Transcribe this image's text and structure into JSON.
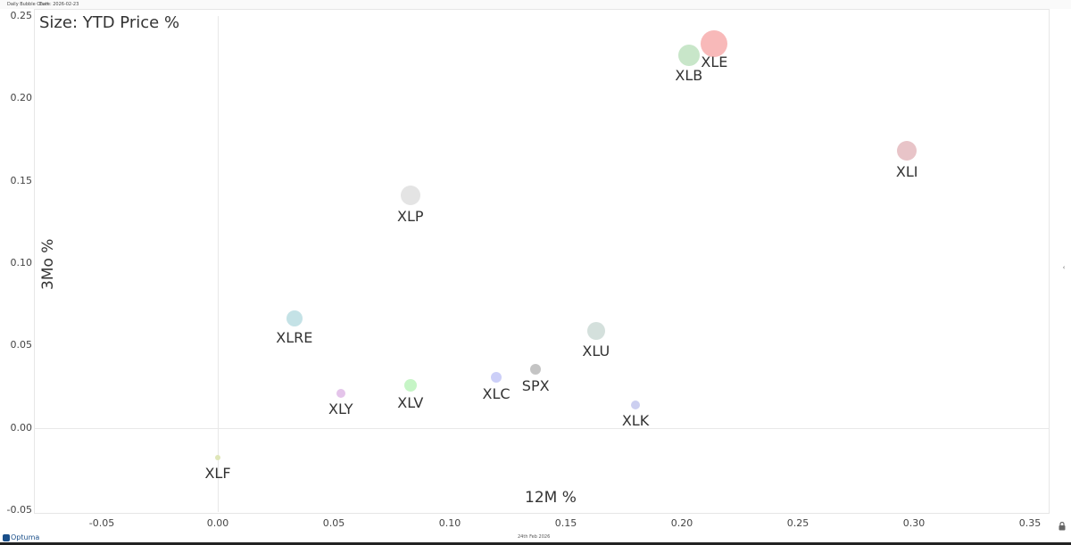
{
  "header": {
    "title": "Daily Bubble Chart",
    "date": "Date: 2026-02-23"
  },
  "footer": {
    "date": "24th Feb 2026",
    "logo": "Optuma"
  },
  "icons": {
    "lock": "lock-icon",
    "collapse": "chevron-left-icon",
    "logo": "optuma-logo-icon"
  },
  "chart_data": {
    "type": "scatter",
    "title": "Daily Bubble Chart",
    "subtitle": "Size: YTD Price %",
    "xlabel": "12M %",
    "ylabel": "3Mo %",
    "xlim": [
      -0.1,
      0.36
    ],
    "ylim": [
      -0.05,
      0.25
    ],
    "x_ticks": [
      "-0.05",
      "0.00",
      "0.05",
      "0.10",
      "0.15",
      "0.20",
      "0.25",
      "0.30",
      "0.35"
    ],
    "y_ticks": [
      "0.25",
      "0.20",
      "0.15",
      "0.10",
      "0.05",
      "0.00",
      "-0.05"
    ],
    "grid": false,
    "points": [
      {
        "label": "XLE",
        "x": 0.214,
        "y": 0.234,
        "size": 15,
        "color": "#f8b9b9"
      },
      {
        "label": "XLB",
        "x": 0.203,
        "y": 0.227,
        "size": 12,
        "color": "#c8e6c9"
      },
      {
        "label": "XLI",
        "x": 0.297,
        "y": 0.169,
        "size": 11,
        "color": "#e8c4c8"
      },
      {
        "label": "XLP",
        "x": 0.083,
        "y": 0.142,
        "size": 11,
        "color": "#e4e4e4"
      },
      {
        "label": "XLRE",
        "x": 0.033,
        "y": 0.067,
        "size": 9,
        "color": "#c4e2e6"
      },
      {
        "label": "XLU",
        "x": 0.163,
        "y": 0.059,
        "size": 10,
        "color": "#d4e0dc"
      },
      {
        "label": "SPX",
        "x": 0.137,
        "y": 0.036,
        "size": 6,
        "color": "#c4c4c4"
      },
      {
        "label": "XLC",
        "x": 0.12,
        "y": 0.031,
        "size": 6,
        "color": "#cccff8"
      },
      {
        "label": "XLV",
        "x": 0.083,
        "y": 0.026,
        "size": 7,
        "color": "#c6f5c6"
      },
      {
        "label": "XLY",
        "x": 0.053,
        "y": 0.021,
        "size": 5,
        "color": "#e4c4ea"
      },
      {
        "label": "XLK",
        "x": 0.18,
        "y": 0.014,
        "size": 5,
        "color": "#cccff0"
      },
      {
        "label": "XLF",
        "x": 0.0,
        "y": -0.018,
        "size": 3,
        "color": "#dfe6b8"
      }
    ]
  }
}
